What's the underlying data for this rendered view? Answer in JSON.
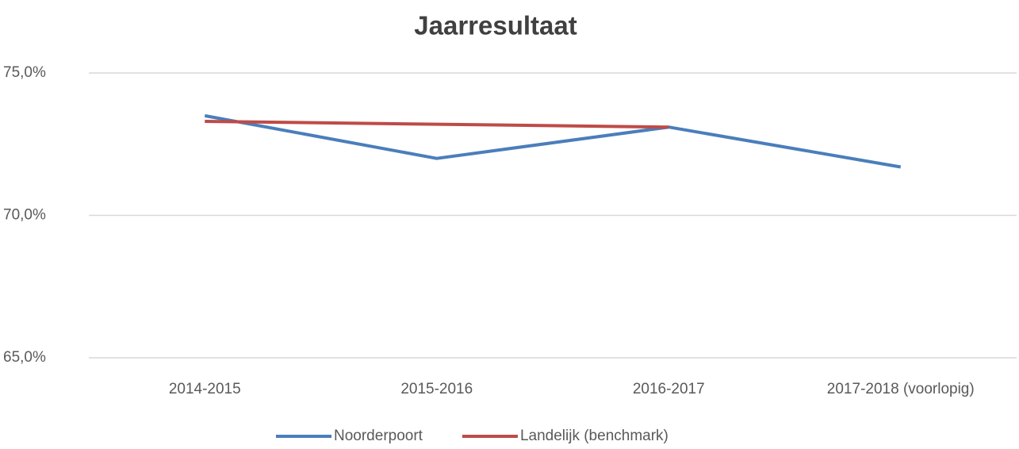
{
  "chart_data": {
    "type": "line",
    "title": "Jaarresultaat",
    "categories": [
      "2014-2015",
      "2015-2016",
      "2016-2017",
      "2017-2018 (voorlopig)"
    ],
    "series": [
      {
        "name": "Noorderpoort",
        "color": "#4a7ebb",
        "values": [
          73.5,
          72.0,
          73.1,
          71.7
        ]
      },
      {
        "name": "Landelijk (benchmark)",
        "color": "#be4b48",
        "values": [
          73.3,
          73.2,
          73.1,
          null
        ]
      }
    ],
    "ylim": [
      65,
      75
    ],
    "yticks": [
      {
        "value": 65,
        "label": "65,0%"
      },
      {
        "value": 70,
        "label": "70,0%"
      },
      {
        "value": 75,
        "label": "75,0%"
      }
    ],
    "grid": true,
    "legend": "bottom"
  }
}
